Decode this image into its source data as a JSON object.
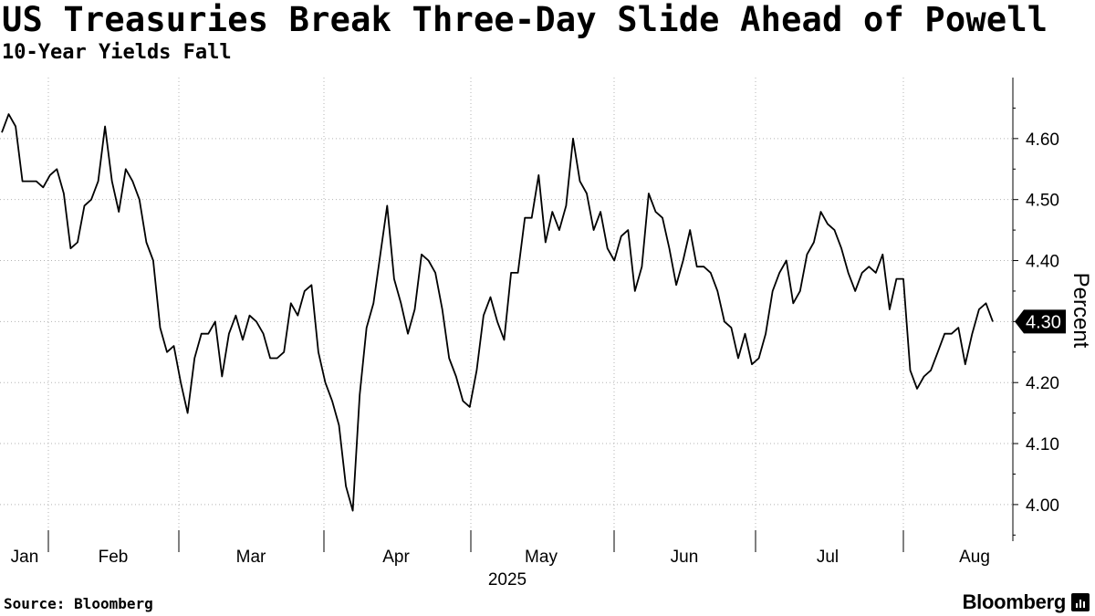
{
  "header": {
    "title": "US Treasuries Break Three-Day Slide Ahead of Powell",
    "subtitle": "10-Year Yields Fall"
  },
  "footer": {
    "source": "Source: Bloomberg",
    "brand": "Bloomberg"
  },
  "colors": {
    "line": "#000000",
    "grid": "#b3b3b3",
    "last_value_badge": "#000000"
  },
  "chart_data": {
    "type": "line",
    "title": "US Treasuries Break Three-Day Slide Ahead of Powell",
    "subtitle": "10-Year Yields Fall",
    "ylabel": "Percent",
    "year_label": "2025",
    "ylim": [
      3.94,
      4.7
    ],
    "y_ticks": [
      4.0,
      4.1,
      4.2,
      4.3,
      4.4,
      4.5,
      4.6
    ],
    "y_tick_labels": [
      "4.00",
      "4.10",
      "4.20",
      "4.30",
      "4.40",
      "4.50",
      "4.60"
    ],
    "month_labels": [
      "Jan",
      "Feb",
      "Mar",
      "Apr",
      "May",
      "Jun",
      "Jul",
      "Aug"
    ],
    "last_value_label": "4.30",
    "y_axis_side": "right",
    "grid": true,
    "series": [
      {
        "values": [
          4.61,
          4.64,
          4.62,
          4.53,
          4.53,
          4.53,
          4.52,
          4.54,
          4.55,
          4.51,
          4.42,
          4.43,
          4.49,
          4.5,
          4.53,
          4.62,
          4.53,
          4.48,
          4.55,
          4.53,
          4.5,
          4.43,
          4.4,
          4.29,
          4.25,
          4.26,
          4.2,
          4.15,
          4.24,
          4.28,
          4.28,
          4.3,
          4.21,
          4.28,
          4.31,
          4.27,
          4.31,
          4.3,
          4.28,
          4.24,
          4.24,
          4.25,
          4.33,
          4.31,
          4.35,
          4.36,
          4.25,
          4.2,
          4.17,
          4.13,
          4.03,
          3.99,
          4.18,
          4.29,
          4.33,
          4.41,
          4.49,
          4.37,
          4.33,
          4.28,
          4.32,
          4.41,
          4.4,
          4.38,
          4.32,
          4.24,
          4.21,
          4.17,
          4.16,
          4.22,
          4.31,
          4.34,
          4.3,
          4.27,
          4.38,
          4.38,
          4.47,
          4.47,
          4.54,
          4.43,
          4.48,
          4.45,
          4.49,
          4.6,
          4.53,
          4.51,
          4.45,
          4.48,
          4.42,
          4.4,
          4.44,
          4.45,
          4.35,
          4.39,
          4.51,
          4.48,
          4.47,
          4.42,
          4.36,
          4.4,
          4.45,
          4.39,
          4.39,
          4.38,
          4.35,
          4.3,
          4.29,
          4.24,
          4.28,
          4.23,
          4.24,
          4.28,
          4.35,
          4.38,
          4.4,
          4.33,
          4.35,
          4.41,
          4.43,
          4.48,
          4.46,
          4.45,
          4.42,
          4.38,
          4.35,
          4.38,
          4.39,
          4.38,
          4.41,
          4.32,
          4.37,
          4.37,
          4.22,
          4.19,
          4.21,
          4.22,
          4.25,
          4.28,
          4.28,
          4.29,
          4.23,
          4.28,
          4.32,
          4.33,
          4.3
        ]
      }
    ]
  }
}
